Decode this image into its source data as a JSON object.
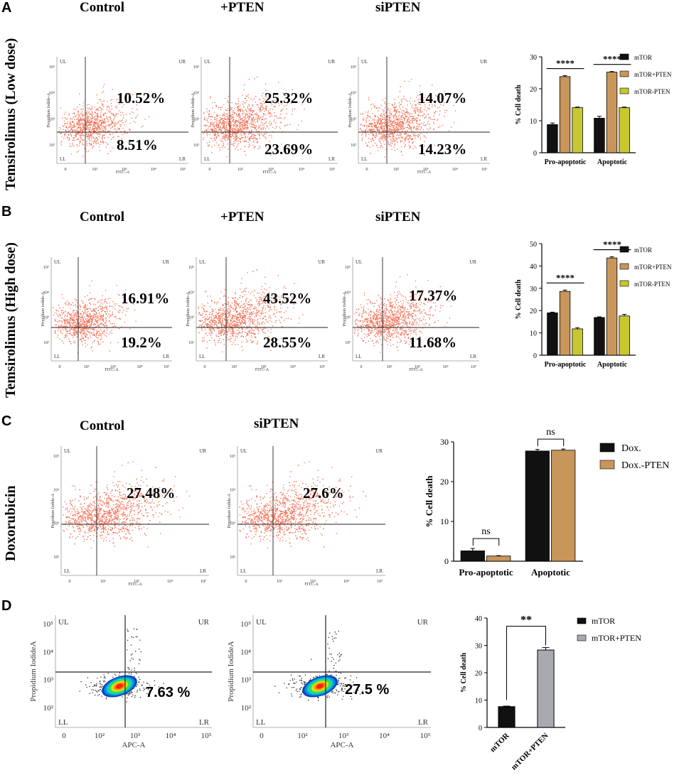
{
  "panels": {
    "A": {
      "letter": "A",
      "row_label": "Temsirolimus (Low dose)",
      "conditions": [
        "Control",
        "+PTEN",
        "siPTEN"
      ],
      "percent_upper": [
        "10.52%",
        "25.32%",
        "14.07%"
      ],
      "percent_lower": [
        "8.51%",
        "23.69%",
        "14.23%"
      ]
    },
    "B": {
      "letter": "B",
      "row_label": "Temsirolimus (High dose)",
      "conditions": [
        "Control",
        "+PTEN",
        "siPTEN"
      ],
      "percent_upper": [
        "16.91%",
        "43.52%",
        "17.37%"
      ],
      "percent_lower": [
        "19.2%",
        "28.55%",
        "11.68%"
      ]
    },
    "C": {
      "letter": "C",
      "row_label": "Doxorubicin",
      "conditions": [
        "Control",
        "siPTEN"
      ],
      "percent_upper": [
        "27.48%",
        "27.6%"
      ]
    },
    "D": {
      "letter": "D",
      "percent_lower": [
        "7.63 %",
        "27.5 %"
      ]
    }
  },
  "flow_labels": {
    "ul": "UL",
    "ur": "UR",
    "ll": "LL",
    "lr": "LR",
    "ylabel": "Propidium Iodide-A",
    "xlabel_fitc": "FITC-A",
    "ylabel_d": "Propidium IodideA",
    "xlabel_apc": "APC-A",
    "xticks": [
      "0",
      "10²",
      "10³",
      "10⁴",
      "10⁵"
    ],
    "yticks": [
      "10⁵",
      "10⁴",
      "10³",
      "10²"
    ]
  },
  "chart_data": [
    {
      "type": "bar",
      "panel": "A",
      "categories": [
        "Pro-apoptotic",
        "Apoptotic"
      ],
      "series": [
        {
          "name": "mTOR",
          "values": [
            8.8,
            10.8
          ],
          "errors": [
            0.5,
            0.6
          ]
        },
        {
          "name": "mTOR+PTEN",
          "values": [
            23.8,
            25.2
          ],
          "errors": [
            0.3,
            0.2
          ]
        },
        {
          "name": "mTOR-PTEN",
          "values": [
            14.1,
            14.1
          ],
          "errors": [
            0.2,
            0.2
          ]
        }
      ],
      "ylabel": "% Cell death",
      "ylim": [
        0,
        30
      ],
      "yticks": [
        0,
        10,
        20,
        30
      ],
      "colors": [
        "#111111",
        "#c8955a",
        "#c7c730"
      ],
      "annotations": [
        {
          "category": "Pro-apoptotic",
          "text": "****"
        },
        {
          "category": "Apoptotic",
          "text": "****"
        }
      ]
    },
    {
      "type": "bar",
      "panel": "B",
      "categories": [
        "Pro-apoptotic",
        "Apoptotic"
      ],
      "series": [
        {
          "name": "mTOR",
          "values": [
            19.0,
            16.9
          ],
          "errors": [
            0.3,
            0.3
          ]
        },
        {
          "name": "mTOR+PTEN",
          "values": [
            28.6,
            43.6
          ],
          "errors": [
            0.6,
            0.5
          ]
        },
        {
          "name": "mTOR-PTEN",
          "values": [
            11.8,
            17.6
          ],
          "errors": [
            0.5,
            0.7
          ]
        }
      ],
      "ylabel": "% Cell death",
      "ylim": [
        0,
        50
      ],
      "yticks": [
        0,
        10,
        20,
        30,
        40,
        50
      ],
      "colors": [
        "#111111",
        "#c8955a",
        "#c7c730"
      ],
      "annotations": [
        {
          "category": "Pro-apoptotic",
          "text": "****"
        },
        {
          "category": "Apoptotic",
          "text": "****"
        }
      ]
    },
    {
      "type": "bar",
      "panel": "C",
      "categories": [
        "Pro-apoptotic",
        "Apoptotic"
      ],
      "series": [
        {
          "name": "Dox.",
          "values": [
            2.6,
            27.7
          ],
          "errors": [
            0.6,
            0.4
          ]
        },
        {
          "name": "Dox.-PTEN",
          "values": [
            1.3,
            27.9
          ],
          "errors": [
            0.1,
            0.3
          ]
        }
      ],
      "ylabel": "% Cell death",
      "ylim": [
        0,
        30
      ],
      "yticks": [
        0,
        10,
        20,
        30
      ],
      "colors": [
        "#111111",
        "#c8955a"
      ],
      "annotations": [
        {
          "category": "Pro-apoptotic",
          "text": "ns"
        },
        {
          "category": "Apoptotic",
          "text": "ns"
        }
      ]
    },
    {
      "type": "bar",
      "panel": "D",
      "categories": [
        "mTOR",
        "mTOR+PTEN"
      ],
      "series": [
        {
          "name": "% Cell death",
          "values": [
            7.6,
            28.3
          ],
          "errors": [
            0.2,
            0.9
          ]
        }
      ],
      "legend": [
        "mTOR",
        "mTOR+PTEN"
      ],
      "ylabel": "% Cell death",
      "ylim": [
        0,
        40
      ],
      "yticks": [
        0,
        10,
        20,
        30,
        40
      ],
      "colors": [
        "#111111",
        "#a9a9b2"
      ],
      "annotations": [
        {
          "text": "**"
        }
      ]
    }
  ]
}
